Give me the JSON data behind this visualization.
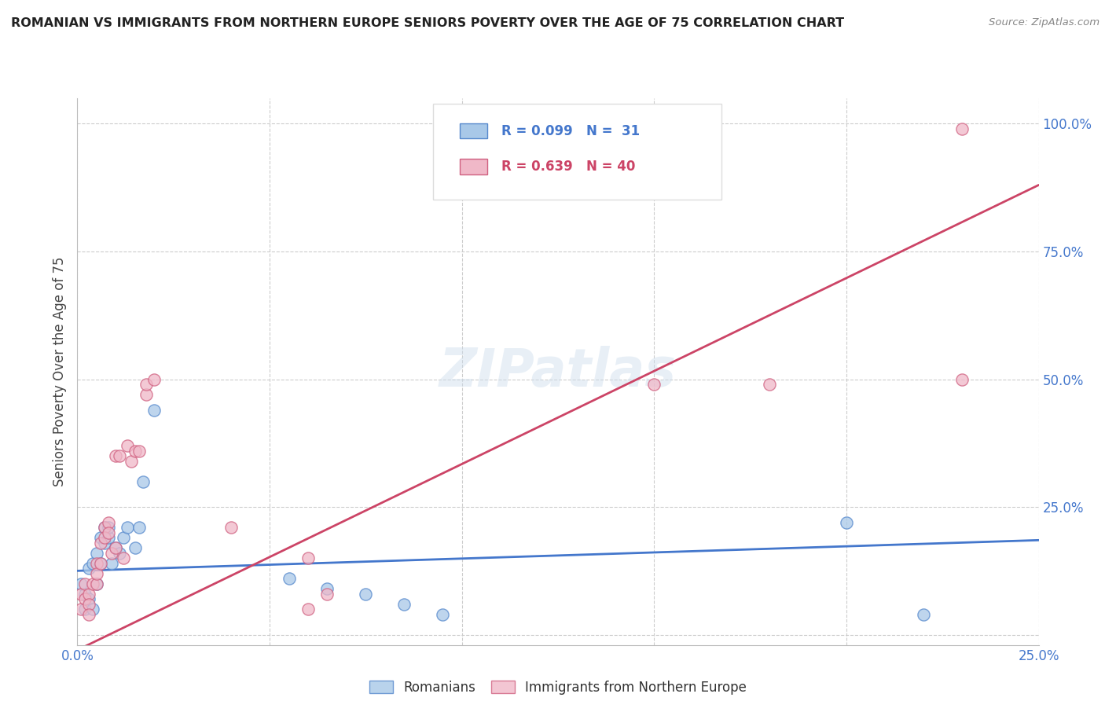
{
  "title": "ROMANIAN VS IMMIGRANTS FROM NORTHERN EUROPE SENIORS POVERTY OVER THE AGE OF 75 CORRELATION CHART",
  "source": "Source: ZipAtlas.com",
  "ylabel": "Seniors Poverty Over the Age of 75",
  "ytick_labels": [
    "",
    "25.0%",
    "50.0%",
    "75.0%",
    "100.0%"
  ],
  "ytick_values": [
    0.0,
    0.25,
    0.5,
    0.75,
    1.0
  ],
  "xtick_labels": [
    "0.0%",
    "25.0%"
  ],
  "xtick_values": [
    0.0,
    0.25
  ],
  "xlim": [
    0.0,
    0.25
  ],
  "ylim": [
    -0.02,
    1.05
  ],
  "watermark": "ZIPatlas",
  "legend_blue_r": "R = 0.099",
  "legend_blue_n": "N =  31",
  "legend_pink_r": "R = 0.639",
  "legend_pink_n": "N = 40",
  "legend_label_blue": "Romanians",
  "legend_label_pink": "Immigrants from Northern Europe",
  "blue_scatter_color": "#a8c8e8",
  "blue_edge_color": "#5588cc",
  "pink_scatter_color": "#f0b8c8",
  "pink_edge_color": "#d06080",
  "blue_line_color": "#4477cc",
  "pink_line_color": "#cc4466",
  "grid_color": "#cccccc",
  "title_color": "#222222",
  "axis_label_color": "#4477cc",
  "blue_points": [
    [
      0.001,
      0.1
    ],
    [
      0.002,
      0.08
    ],
    [
      0.002,
      0.05
    ],
    [
      0.003,
      0.07
    ],
    [
      0.003,
      0.13
    ],
    [
      0.004,
      0.05
    ],
    [
      0.004,
      0.14
    ],
    [
      0.005,
      0.16
    ],
    [
      0.005,
      0.1
    ],
    [
      0.006,
      0.19
    ],
    [
      0.006,
      0.14
    ],
    [
      0.007,
      0.18
    ],
    [
      0.007,
      0.21
    ],
    [
      0.008,
      0.19
    ],
    [
      0.008,
      0.21
    ],
    [
      0.009,
      0.14
    ],
    [
      0.01,
      0.17
    ],
    [
      0.011,
      0.16
    ],
    [
      0.012,
      0.19
    ],
    [
      0.013,
      0.21
    ],
    [
      0.015,
      0.17
    ],
    [
      0.016,
      0.21
    ],
    [
      0.017,
      0.3
    ],
    [
      0.02,
      0.44
    ],
    [
      0.055,
      0.11
    ],
    [
      0.065,
      0.09
    ],
    [
      0.075,
      0.08
    ],
    [
      0.085,
      0.06
    ],
    [
      0.095,
      0.04
    ],
    [
      0.2,
      0.22
    ],
    [
      0.22,
      0.04
    ]
  ],
  "pink_points": [
    [
      0.001,
      0.08
    ],
    [
      0.001,
      0.05
    ],
    [
      0.002,
      0.1
    ],
    [
      0.002,
      0.07
    ],
    [
      0.003,
      0.08
    ],
    [
      0.003,
      0.06
    ],
    [
      0.003,
      0.04
    ],
    [
      0.004,
      0.1
    ],
    [
      0.005,
      0.14
    ],
    [
      0.005,
      0.1
    ],
    [
      0.005,
      0.12
    ],
    [
      0.006,
      0.18
    ],
    [
      0.006,
      0.14
    ],
    [
      0.007,
      0.21
    ],
    [
      0.007,
      0.19
    ],
    [
      0.008,
      0.22
    ],
    [
      0.008,
      0.2
    ],
    [
      0.009,
      0.16
    ],
    [
      0.01,
      0.17
    ],
    [
      0.01,
      0.35
    ],
    [
      0.011,
      0.35
    ],
    [
      0.012,
      0.15
    ],
    [
      0.013,
      0.37
    ],
    [
      0.014,
      0.34
    ],
    [
      0.015,
      0.36
    ],
    [
      0.016,
      0.36
    ],
    [
      0.018,
      0.47
    ],
    [
      0.018,
      0.49
    ],
    [
      0.02,
      0.5
    ],
    [
      0.04,
      0.21
    ],
    [
      0.06,
      0.15
    ],
    [
      0.06,
      0.05
    ],
    [
      0.065,
      0.08
    ],
    [
      0.1,
      0.99
    ],
    [
      0.12,
      1.0
    ],
    [
      0.15,
      0.49
    ],
    [
      0.18,
      0.49
    ],
    [
      0.23,
      0.99
    ],
    [
      0.23,
      0.5
    ],
    [
      0.115,
      0.99
    ]
  ],
  "blue_trend_x": [
    0.0,
    0.25
  ],
  "blue_trend_y": [
    0.125,
    0.185
  ],
  "pink_trend_x": [
    0.0,
    0.25
  ],
  "pink_trend_y": [
    -0.03,
    0.88
  ]
}
